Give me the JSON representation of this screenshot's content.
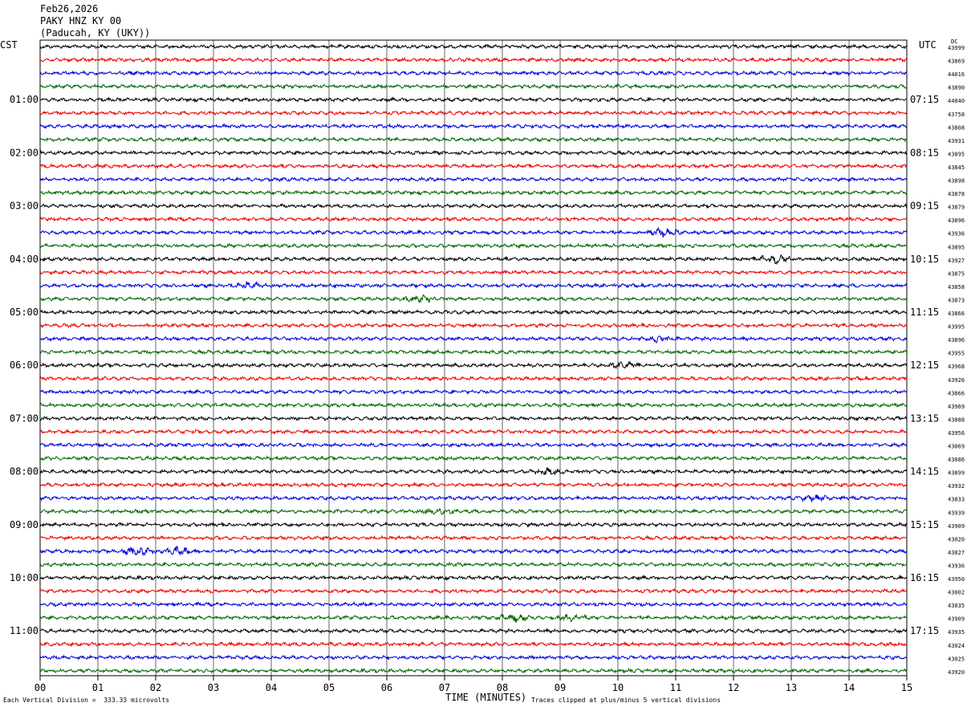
{
  "header": {
    "date": "Feb26,2026",
    "station": "PAKY HNZ KY 00",
    "location": "(Paducah, KY (UKY))"
  },
  "left_axis_label": "CST",
  "right_axis_label": "UTC",
  "dc_label": "DC",
  "footer": {
    "scale_note": "Each Vertical Division =  333.33 microvolts",
    "xlabel": "TIME (MINUTES)",
    "clip_note": "Traces clipped at plus/minus 5 vertical divisions"
  },
  "chart_data": {
    "type": "line",
    "title": "Feb26,2026 PAKY HNZ KY 00 (Paducah, KY (UKY))",
    "xlabel": "TIME (MINUTES)",
    "xlim": [
      0,
      15
    ],
    "x_ticks": [
      "00",
      "01",
      "02",
      "03",
      "04",
      "05",
      "06",
      "07",
      "08",
      "09",
      "10",
      "11",
      "12",
      "13",
      "14",
      "15"
    ],
    "grid": true,
    "trace_count": 48,
    "trace_colors": [
      "#000000",
      "#ee0000",
      "#0000dd",
      "#006600"
    ],
    "left_time_labels": [
      {
        "trace": 4,
        "label": "01:00"
      },
      {
        "trace": 8,
        "label": "02:00"
      },
      {
        "trace": 12,
        "label": "03:00"
      },
      {
        "trace": 16,
        "label": "04:00"
      },
      {
        "trace": 20,
        "label": "05:00"
      },
      {
        "trace": 24,
        "label": "06:00"
      },
      {
        "trace": 28,
        "label": "07:00"
      },
      {
        "trace": 32,
        "label": "08:00"
      },
      {
        "trace": 36,
        "label": "09:00"
      },
      {
        "trace": 40,
        "label": "10:00"
      },
      {
        "trace": 44,
        "label": "11:00"
      }
    ],
    "right_time_labels": [
      {
        "trace": 4,
        "label": "07:15"
      },
      {
        "trace": 8,
        "label": "08:15"
      },
      {
        "trace": 12,
        "label": "09:15"
      },
      {
        "trace": 16,
        "label": "10:15"
      },
      {
        "trace": 20,
        "label": "11:15"
      },
      {
        "trace": 24,
        "label": "12:15"
      },
      {
        "trace": 28,
        "label": "13:15"
      },
      {
        "trace": 32,
        "label": "14:15"
      },
      {
        "trace": 36,
        "label": "15:15"
      },
      {
        "trace": 40,
        "label": "16:15"
      },
      {
        "trace": 44,
        "label": "17:15"
      }
    ],
    "dc_values": [
      "43999",
      "43869",
      "44016",
      "43890",
      "44040",
      "43758",
      "43808",
      "43931",
      "43895",
      "43845",
      "43898",
      "43878",
      "43879",
      "43896",
      "43936",
      "43895",
      "43927",
      "43875",
      "43858",
      "43873",
      "43866",
      "43995",
      "43896",
      "43955",
      "43968",
      "43926",
      "43866",
      "43969",
      "43888",
      "43956",
      "43069",
      "43086",
      "43899",
      "43932",
      "43833",
      "43939",
      "43909",
      "43020",
      "43027",
      "43936",
      "43950",
      "43002",
      "43835",
      "43909",
      "43935",
      "43024",
      "43025",
      "43920"
    ],
    "events": [
      {
        "trace": 14,
        "minute": 10.8,
        "amplitude": 2.0
      },
      {
        "trace": 16,
        "minute": 12.7,
        "amplitude": 2.5
      },
      {
        "trace": 18,
        "minute": 3.6,
        "amplitude": 1.5
      },
      {
        "trace": 19,
        "minute": 6.6,
        "amplitude": 1.6
      },
      {
        "trace": 22,
        "minute": 10.7,
        "amplitude": 1.6
      },
      {
        "trace": 24,
        "minute": 10.1,
        "amplitude": 1.5
      },
      {
        "trace": 32,
        "minute": 8.8,
        "amplitude": 1.4
      },
      {
        "trace": 34,
        "minute": 13.4,
        "amplitude": 1.3
      },
      {
        "trace": 35,
        "minute": 6.9,
        "amplitude": 1.5
      },
      {
        "trace": 38,
        "minute": 1.7,
        "amplitude": 2.2
      },
      {
        "trace": 38,
        "minute": 2.4,
        "amplitude": 1.8
      },
      {
        "trace": 43,
        "minute": 8.2,
        "amplitude": 2.0
      },
      {
        "trace": 43,
        "minute": 9.2,
        "amplitude": 1.4
      }
    ]
  }
}
